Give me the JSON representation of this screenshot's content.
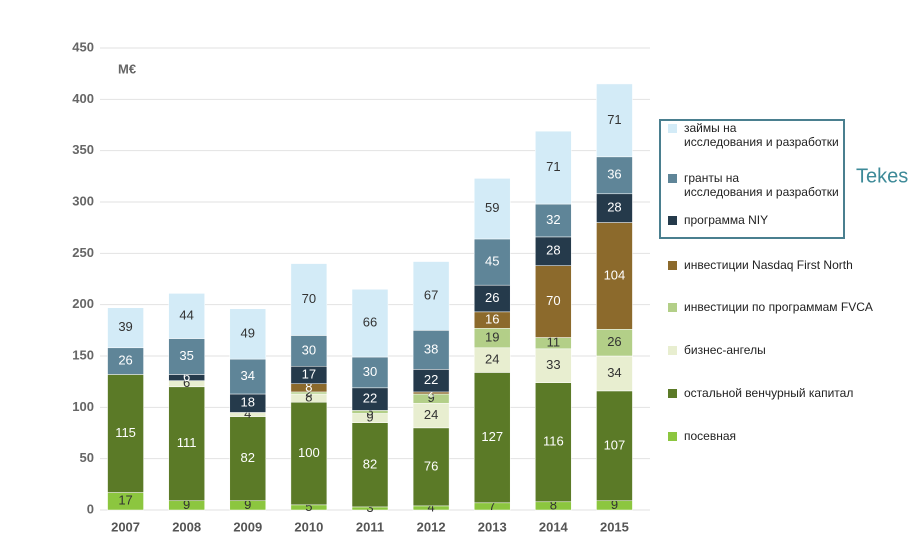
{
  "chart_data": {
    "type": "stacked_bar",
    "y_label": "M€",
    "categories": [
      "2007",
      "2008",
      "2009",
      "2010",
      "2011",
      "2012",
      "2013",
      "2014",
      "2015"
    ],
    "series": [
      {
        "name": "посевная",
        "color": "#8cc63f",
        "values": [
          17,
          9,
          9,
          5,
          3,
          4,
          7,
          8,
          9
        ]
      },
      {
        "name": "остальной венчурный капитал",
        "color": "#5b7a27",
        "values": [
          115,
          111,
          82,
          100,
          82,
          76,
          127,
          116,
          107
        ]
      },
      {
        "name": "бизнес-ангелы",
        "color": "#e8eed0",
        "values": [
          null,
          6,
          4,
          8,
          9,
          24,
          24,
          33,
          34
        ]
      },
      {
        "name": "инвестиции по программам FVCA",
        "color": "#b3cf88",
        "values": [
          null,
          null,
          null,
          2,
          3,
          9,
          19,
          11,
          26
        ]
      },
      {
        "name": "инвестиции Nasdaq First North",
        "color": "#8c6a2c",
        "values": [
          null,
          null,
          null,
          8,
          null,
          2,
          16,
          70,
          104
        ]
      },
      {
        "name": "программа NIY",
        "color": "#253a4b",
        "values": [
          null,
          6,
          18,
          17,
          22,
          22,
          26,
          28,
          28
        ]
      },
      {
        "name": "гранты на\nисследования и разработки",
        "color": "#5f8598",
        "values": [
          26,
          35,
          34,
          30,
          30,
          38,
          45,
          32,
          36
        ]
      },
      {
        "name": "займы на\nисследования и разработки",
        "color": "#d3ebf7",
        "values": [
          39,
          44,
          49,
          70,
          66,
          67,
          59,
          71,
          71
        ]
      }
    ],
    "legend_group_label": "Tekes",
    "ylim": [
      0,
      450
    ],
    "yticks": [
      0,
      50,
      100,
      150,
      200,
      250,
      300,
      350,
      400,
      450
    ],
    "grid": true
  }
}
